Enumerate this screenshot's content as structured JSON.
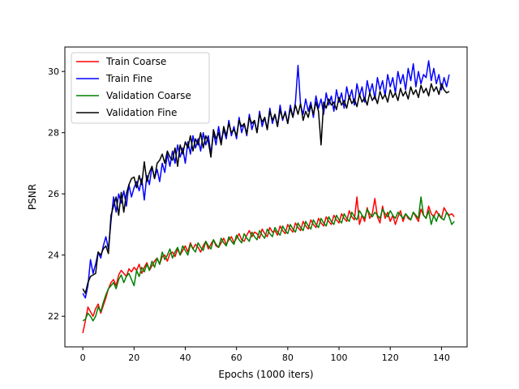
{
  "chart_data": {
    "type": "line",
    "title": "",
    "xlabel": "Epochs (1000 iters)",
    "ylabel": "PSNR",
    "xlim": [
      -7,
      150
    ],
    "ylim": [
      21,
      30.8
    ],
    "xticks": [
      0,
      20,
      40,
      60,
      80,
      100,
      120,
      140
    ],
    "yticks": [
      22,
      24,
      26,
      28,
      30
    ],
    "grid": false,
    "legend_position": "top-left",
    "series": [
      {
        "name": "Train Coarse",
        "color": "#ff0000",
        "values": [
          21.45,
          21.85,
          22.3,
          22.15,
          22.0,
          22.25,
          22.4,
          22.1,
          22.35,
          22.6,
          22.9,
          23.1,
          23.2,
          23.0,
          23.35,
          23.5,
          23.4,
          23.3,
          23.55,
          23.45,
          23.6,
          23.5,
          23.7,
          23.4,
          23.6,
          23.75,
          23.5,
          23.65,
          23.8,
          23.9,
          23.7,
          23.95,
          24.0,
          23.8,
          24.05,
          24.1,
          23.95,
          24.2,
          24.0,
          24.15,
          24.3,
          24.1,
          24.4,
          24.2,
          24.35,
          24.25,
          24.1,
          24.3,
          24.45,
          24.2,
          24.35,
          24.5,
          24.3,
          24.25,
          24.4,
          24.55,
          24.35,
          24.5,
          24.6,
          24.4,
          24.55,
          24.7,
          24.5,
          24.45,
          24.65,
          24.8,
          24.6,
          24.75,
          24.7,
          24.55,
          24.85,
          24.7,
          24.6,
          24.9,
          24.75,
          24.8,
          24.65,
          24.95,
          24.8,
          24.7,
          25.0,
          24.85,
          24.75,
          25.05,
          24.9,
          24.8,
          25.1,
          24.95,
          24.85,
          25.15,
          25.0,
          24.9,
          25.2,
          25.05,
          24.95,
          25.25,
          25.1,
          25.0,
          25.3,
          25.15,
          25.05,
          25.35,
          25.2,
          25.1,
          25.45,
          25.25,
          25.15,
          25.9,
          25.0,
          25.3,
          25.1,
          25.55,
          25.2,
          25.35,
          25.85,
          25.25,
          25.05,
          25.6,
          25.2,
          25.4,
          25.1,
          25.3,
          25.0,
          25.25,
          25.45,
          25.1,
          25.35,
          25.2,
          25.15,
          25.4,
          25.25,
          25.1,
          25.5,
          25.3,
          25.2,
          25.6,
          25.35,
          25.25,
          25.45,
          25.3,
          25.2,
          25.55,
          25.4,
          25.3,
          25.35,
          25.25
        ],
        "note": ""
      },
      {
        "name": "Train Fine",
        "color": "#0000ff",
        "values": [
          22.75,
          22.6,
          23.0,
          23.85,
          23.4,
          23.7,
          24.1,
          23.9,
          24.3,
          24.6,
          24.2,
          25.1,
          25.9,
          25.4,
          26.0,
          25.7,
          26.1,
          25.6,
          26.3,
          25.9,
          26.2,
          26.4,
          26.1,
          26.5,
          25.8,
          26.6,
          26.3,
          26.9,
          26.5,
          26.8,
          26.4,
          27.0,
          26.7,
          27.3,
          26.9,
          27.4,
          27.0,
          27.6,
          27.2,
          27.5,
          27.0,
          27.7,
          27.3,
          27.9,
          27.5,
          27.8,
          27.4,
          28.0,
          27.6,
          27.9,
          27.3,
          28.0,
          27.6,
          28.2,
          27.7,
          28.1,
          27.8,
          28.4,
          27.9,
          28.2,
          27.8,
          28.5,
          28.0,
          28.3,
          27.9,
          28.6,
          28.1,
          28.4,
          28.0,
          28.7,
          28.2,
          28.5,
          28.1,
          28.8,
          28.3,
          28.6,
          28.2,
          28.9,
          28.4,
          28.7,
          28.3,
          28.9,
          28.5,
          29.0,
          30.2,
          28.9,
          28.6,
          29.1,
          28.7,
          29.0,
          28.5,
          29.2,
          28.8,
          29.1,
          28.6,
          29.3,
          28.9,
          29.2,
          28.7,
          29.4,
          29.0,
          29.3,
          28.8,
          29.5,
          29.1,
          29.4,
          28.9,
          29.6,
          29.2,
          29.5,
          29.0,
          29.7,
          29.3,
          29.6,
          29.1,
          29.8,
          29.4,
          29.7,
          29.2,
          29.9,
          29.5,
          29.8,
          29.3,
          30.0,
          29.6,
          29.9,
          29.4,
          30.1,
          29.7,
          30.25,
          29.5,
          30.0,
          29.6,
          29.9,
          29.8,
          30.35,
          29.7,
          30.1,
          29.6,
          29.9,
          29.4,
          29.8,
          29.5,
          29.9
        ],
        "note": ""
      },
      {
        "name": "Validation Coarse",
        "color": "#008000",
        "values": [
          21.85,
          21.9,
          22.1,
          22.0,
          21.85,
          22.0,
          22.3,
          22.15,
          22.45,
          22.7,
          22.9,
          23.0,
          23.1,
          22.9,
          23.2,
          23.35,
          23.1,
          23.3,
          23.4,
          23.2,
          23.0,
          23.5,
          23.3,
          23.6,
          23.45,
          23.7,
          23.5,
          23.8,
          23.6,
          23.9,
          23.7,
          24.1,
          23.85,
          24.0,
          24.2,
          23.9,
          24.1,
          24.25,
          24.0,
          24.3,
          24.15,
          24.0,
          24.35,
          24.2,
          24.1,
          24.4,
          24.25,
          24.15,
          24.45,
          24.3,
          24.2,
          24.5,
          24.35,
          24.25,
          24.55,
          24.4,
          24.3,
          24.6,
          24.45,
          24.35,
          24.65,
          24.5,
          24.4,
          24.7,
          24.55,
          24.45,
          24.75,
          24.6,
          24.5,
          24.8,
          24.65,
          24.55,
          24.85,
          24.7,
          24.6,
          24.9,
          24.75,
          24.65,
          24.95,
          24.8,
          24.7,
          25.0,
          24.85,
          24.75,
          25.05,
          24.9,
          24.8,
          25.1,
          24.95,
          24.85,
          25.15,
          25.0,
          24.9,
          25.2,
          25.05,
          24.95,
          25.25,
          25.1,
          25.0,
          25.3,
          25.15,
          25.05,
          25.35,
          25.2,
          25.1,
          25.4,
          25.25,
          25.15,
          25.45,
          25.3,
          25.2,
          25.5,
          25.35,
          25.25,
          25.4,
          25.3,
          25.2,
          25.5,
          25.35,
          25.25,
          25.45,
          25.3,
          25.2,
          25.4,
          25.3,
          25.2,
          25.35,
          25.25,
          25.15,
          25.4,
          25.3,
          25.2,
          25.9,
          25.3,
          25.2,
          25.45,
          25.0,
          25.3,
          25.1,
          25.35,
          25.2,
          25.15,
          25.4,
          25.25,
          25.0,
          25.1
        ],
        "note": ""
      },
      {
        "name": "Validation Fine",
        "color": "#000000",
        "values": [
          22.9,
          22.75,
          23.1,
          23.3,
          23.35,
          23.4,
          24.1,
          24.0,
          24.2,
          24.3,
          24.05,
          25.3,
          25.6,
          25.9,
          25.3,
          26.05,
          25.4,
          26.0,
          26.3,
          26.5,
          26.55,
          26.2,
          26.6,
          26.3,
          27.05,
          26.4,
          26.7,
          26.9,
          26.5,
          27.0,
          27.1,
          27.3,
          27.0,
          27.4,
          27.2,
          27.1,
          27.5,
          26.9,
          27.6,
          27.3,
          27.7,
          27.5,
          27.9,
          27.4,
          27.8,
          27.6,
          28.0,
          27.5,
          27.9,
          27.7,
          27.2,
          28.1,
          27.8,
          28.0,
          27.6,
          28.2,
          27.9,
          28.3,
          28.0,
          28.1,
          27.9,
          28.4,
          28.2,
          28.3,
          27.95,
          28.5,
          28.3,
          28.4,
          28.0,
          28.6,
          28.35,
          28.5,
          28.1,
          28.7,
          28.4,
          28.6,
          28.2,
          28.75,
          28.45,
          28.65,
          28.3,
          28.8,
          28.5,
          28.9,
          28.6,
          28.95,
          28.4,
          28.7,
          28.5,
          28.9,
          28.6,
          29.0,
          28.7,
          27.6,
          29.0,
          28.8,
          29.1,
          28.9,
          29.0,
          28.75,
          29.15,
          28.9,
          29.05,
          28.8,
          29.2,
          28.95,
          29.1,
          28.85,
          29.25,
          29.0,
          29.15,
          28.9,
          29.3,
          29.05,
          29.2,
          28.95,
          29.35,
          29.1,
          29.25,
          29.0,
          29.4,
          29.15,
          29.3,
          29.05,
          29.45,
          29.2,
          29.35,
          29.1,
          29.5,
          29.25,
          29.4,
          29.15,
          29.55,
          29.3,
          29.45,
          29.2,
          29.6,
          29.35,
          29.5,
          29.25,
          29.6,
          29.4,
          29.3,
          29.35
        ],
        "note": ""
      }
    ]
  }
}
